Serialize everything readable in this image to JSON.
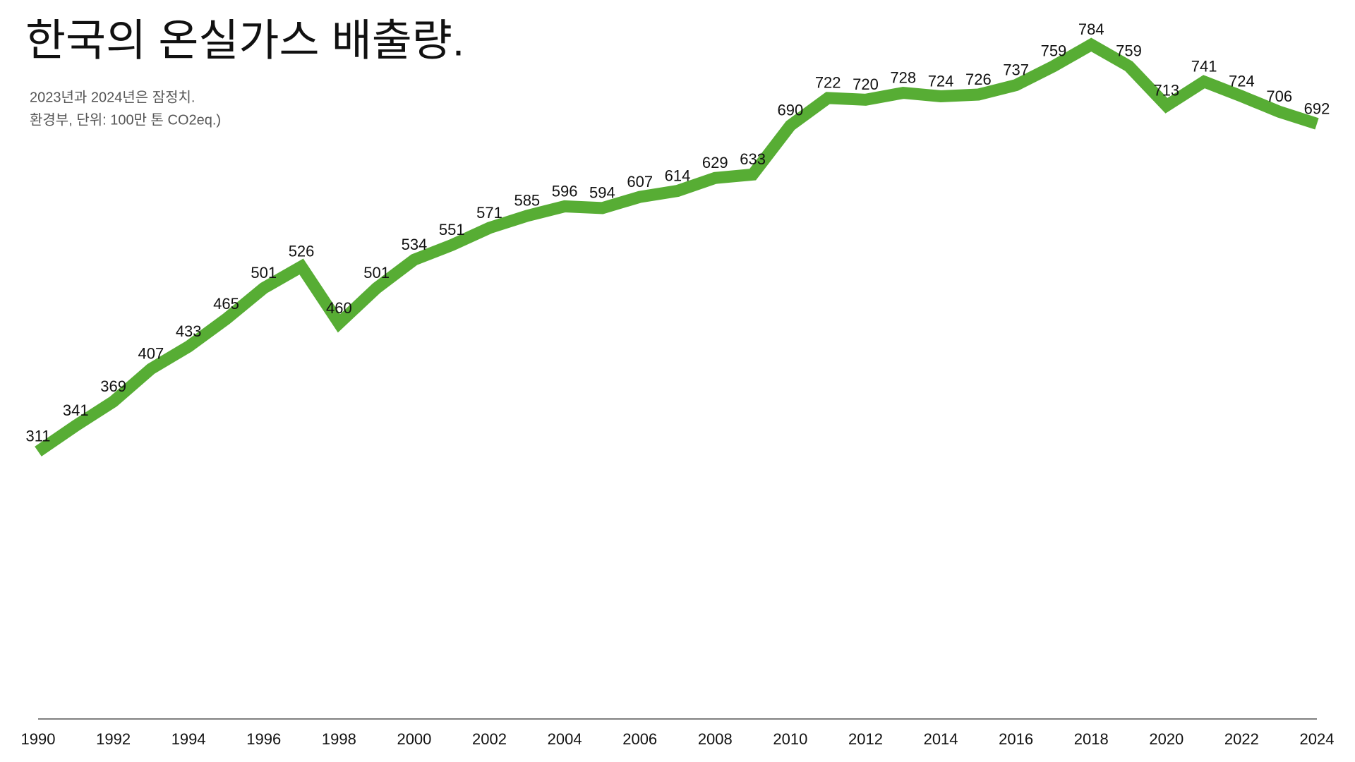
{
  "chart_data": {
    "type": "line",
    "title": "한국의 온실가스 배출량.",
    "subtitle": "2023년과 2024년은 잠정치.",
    "source": "환경부, 단위: 100만 톤 CO2eq.)",
    "x": [
      1990,
      1991,
      1992,
      1993,
      1994,
      1995,
      1996,
      1997,
      1998,
      1999,
      2000,
      2001,
      2002,
      2003,
      2004,
      2005,
      2006,
      2007,
      2008,
      2009,
      2010,
      2011,
      2012,
      2013,
      2014,
      2015,
      2016,
      2017,
      2018,
      2019,
      2020,
      2021,
      2022,
      2023,
      2024
    ],
    "values": [
      311,
      341,
      369,
      407,
      433,
      465,
      501,
      526,
      460,
      501,
      534,
      551,
      571,
      585,
      596,
      594,
      607,
      614,
      629,
      633,
      690,
      722,
      720,
      728,
      724,
      726,
      737,
      759,
      784,
      759,
      713,
      741,
      724,
      706,
      692
    ],
    "color": "#57ad34",
    "xlim": [
      1990,
      2024
    ],
    "xticks": [
      1990,
      1992,
      1994,
      1996,
      1998,
      2000,
      2002,
      2004,
      2006,
      2008,
      2010,
      2012,
      2014,
      2016,
      2018,
      2020,
      2022,
      2024
    ],
    "ylim": [
      0,
      790
    ]
  }
}
